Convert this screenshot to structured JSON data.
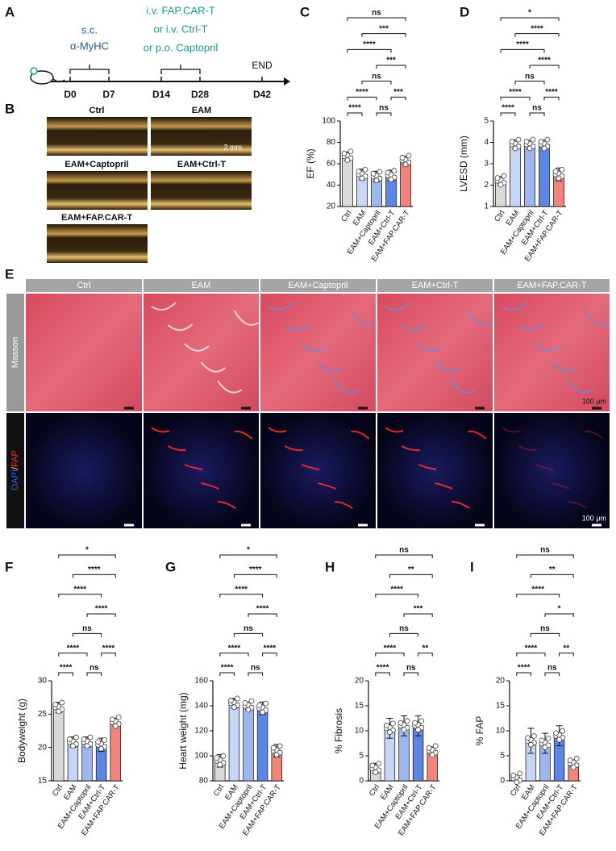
{
  "panel_a": {
    "letter": "A",
    "sc": "s.c.",
    "antigen": "α-MyHC",
    "treatment": [
      "i.v. FAP.CAR-T",
      "or i.v. Ctrl-T",
      "or p.o. Captopril"
    ],
    "end": "END",
    "days": [
      "D0",
      "D7",
      "D14",
      "D28",
      "D42"
    ]
  },
  "panel_b": {
    "letter": "B",
    "labels": [
      "Ctrl",
      "EAM",
      "EAM+Captopril",
      "EAM+Ctrl-T",
      "EAM+FAP.CAR-T"
    ],
    "scale": "2 mm"
  },
  "panel_e": {
    "letter": "E",
    "columns": [
      "Ctrl",
      "EAM",
      "EAM+Captopril",
      "EAM+Ctrl-T",
      "EAM+FAP.CAR-T"
    ],
    "row": "Masson",
    "fluor_label": [
      "DAPI",
      "/",
      "FAP"
    ],
    "scale_bars": [
      "100 μm",
      "100 μm"
    ]
  },
  "chart_data": [
    {
      "type": "bar",
      "panel": "C",
      "ylabel": "EF (%)",
      "categories": [
        "Ctrl",
        "EAM",
        "EAM+Captopril",
        "EAM+Ctrl-T",
        "EAM+FAP.CAR-T"
      ],
      "values": [
        67,
        50,
        48,
        49,
        63
      ],
      "errors": [
        4,
        5,
        5,
        5,
        4
      ],
      "colors": [
        "#d9d9d9",
        "#c5d6f7",
        "#9db6f0",
        "#5b86e8",
        "#f4847a"
      ],
      "ylim": [
        20,
        100
      ],
      "yticks": [
        20,
        40,
        60,
        80,
        100
      ],
      "significance": [
        "****",
        "ns",
        "***",
        "****",
        "ns",
        "***",
        "****",
        "***",
        "ns"
      ]
    },
    {
      "type": "bar",
      "panel": "D",
      "ylabel": "LVESD (mm)",
      "categories": [
        "Ctrl",
        "EAM",
        "EAM+Captopril",
        "EAM+Ctrl-T",
        "EAM+FAP.CAR-T"
      ],
      "values": [
        2.2,
        3.9,
        3.9,
        3.9,
        2.5
      ],
      "errors": [
        0.2,
        0.2,
        0.2,
        0.2,
        0.3
      ],
      "colors": [
        "#d9d9d9",
        "#c5d6f7",
        "#9db6f0",
        "#5b86e8",
        "#f4847a"
      ],
      "ylim": [
        1,
        5
      ],
      "yticks": [
        1,
        2,
        3,
        4,
        5
      ],
      "significance": [
        "****",
        "ns",
        "****",
        "****",
        "ns",
        "****",
        "****",
        "****",
        "*"
      ]
    },
    {
      "type": "bar",
      "panel": "F",
      "ylabel": "Bodyweight (g)",
      "categories": [
        "Ctrl",
        "EAM",
        "EAM+Captopril",
        "EAM+Ctrl-T",
        "EAM+FAP.CAR-T"
      ],
      "values": [
        26,
        20.8,
        20.8,
        20.4,
        23.8
      ],
      "errors": [
        0.8,
        0.8,
        0.8,
        1,
        0.6
      ],
      "colors": [
        "#d9d9d9",
        "#c5d6f7",
        "#9db6f0",
        "#5b86e8",
        "#f4847a"
      ],
      "ylim": [
        15,
        30
      ],
      "yticks": [
        15,
        20,
        25,
        30
      ],
      "significance": [
        "****",
        "ns",
        "****",
        "****",
        "ns",
        "****",
        "****",
        "****",
        "*"
      ]
    },
    {
      "type": "bar",
      "panel": "G",
      "ylabel": "Heart weight (mg)",
      "categories": [
        "Ctrl",
        "EAM",
        "EAM+Captopril",
        "EAM+Ctrl-T",
        "EAM+FAP.CAR-T"
      ],
      "values": [
        96,
        142,
        140,
        138,
        104
      ],
      "errors": [
        5,
        4,
        3,
        5,
        5
      ],
      "colors": [
        "#d9d9d9",
        "#c5d6f7",
        "#9db6f0",
        "#5b86e8",
        "#f4847a"
      ],
      "ylim": [
        80,
        160
      ],
      "yticks": [
        80,
        100,
        120,
        140,
        160
      ],
      "significance": [
        "****",
        "ns",
        "****",
        "****",
        "ns",
        "****",
        "****",
        "****",
        "*"
      ]
    },
    {
      "type": "bar",
      "panel": "H",
      "ylabel": "% Fibrosis",
      "categories": [
        "Ctrl",
        "EAM",
        "EAM+Captopril",
        "EAM+Ctrl-T",
        "EAM+FAP.CAR-T"
      ],
      "values": [
        2.5,
        10.5,
        11,
        11,
        6
      ],
      "errors": [
        1,
        2,
        2,
        2,
        0.8
      ],
      "colors": [
        "#d9d9d9",
        "#c5d6f7",
        "#9db6f0",
        "#5b86e8",
        "#f4847a"
      ],
      "ylim": [
        0,
        20
      ],
      "yticks": [
        0,
        5,
        10,
        15,
        20
      ],
      "significance": [
        "****",
        "ns",
        "**",
        "****",
        "ns",
        "***",
        "****",
        "**",
        "ns"
      ]
    },
    {
      "type": "bar",
      "panel": "I",
      "ylabel": "% FAP",
      "categories": [
        "Ctrl",
        "EAM",
        "EAM+Captopril",
        "EAM+Ctrl-T",
        "EAM+FAP.CAR-T"
      ],
      "values": [
        0.5,
        8,
        7.5,
        9,
        3.5
      ],
      "errors": [
        0.2,
        2.5,
        2,
        2,
        0.7
      ],
      "colors": [
        "#d9d9d9",
        "#c5d6f7",
        "#9db6f0",
        "#5b86e8",
        "#f4847a"
      ],
      "ylim": [
        0,
        20
      ],
      "yticks": [
        0,
        5,
        10,
        15,
        20
      ],
      "significance": [
        "****",
        "ns",
        "**",
        "****",
        "ns",
        "*",
        "****",
        "**",
        "ns"
      ]
    }
  ]
}
